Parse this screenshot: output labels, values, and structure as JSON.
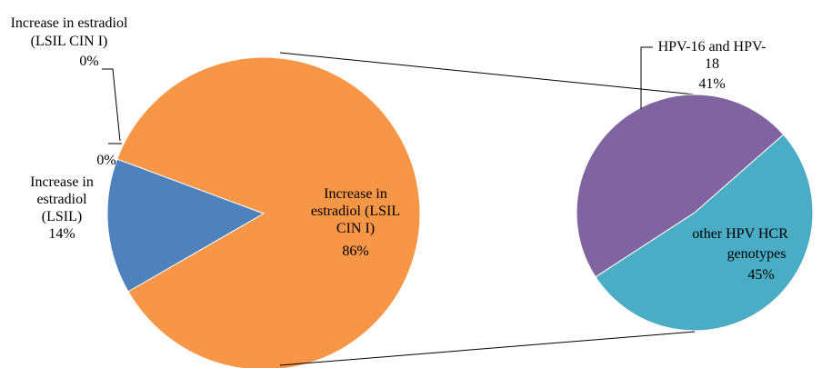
{
  "chart_data": {
    "type": "pie",
    "subtype": "pie-of-pie",
    "main_pie": {
      "slices": [
        {
          "label": "Increase in estradiol (LSIL)",
          "value": 14,
          "value_text": "14%",
          "color": "#4F81BD"
        },
        {
          "label": "Increase in estradiol (LSIL CIN I)",
          "value": 0,
          "value_text": "0%",
          "color": "#8064A2"
        },
        {
          "label": "",
          "value": 0,
          "value_text": "0%",
          "color": "#4BACC6"
        },
        {
          "label": "Increase in estradiol (LSIL CIN I)",
          "value": 86,
          "value_text": "86%",
          "color": "#F79646"
        }
      ]
    },
    "secondary_pie": {
      "slices": [
        {
          "label": "HPV-16 and HPV-18",
          "value": 41,
          "value_text": "41%",
          "color": "#8064A2"
        },
        {
          "label": "other HPV HCR genotypes",
          "value": 45,
          "value_text": "45%",
          "color": "#4BACC6"
        }
      ]
    },
    "legend": "none",
    "title": ""
  },
  "labels": {
    "lsil": [
      "Increase in",
      "estradiol",
      "(LSIL)",
      "14%"
    ],
    "zero_top": [
      "Increase in estradiol",
      "(LSIL CIN I)",
      "0%"
    ],
    "zero_mid": [
      "0%"
    ],
    "cin": [
      "Increase in",
      "estradiol (LSIL",
      "CIN I)",
      "86%"
    ],
    "hpv16": [
      "HPV-16 and HPV-",
      "18",
      "41%"
    ],
    "other": [
      "other HPV HCR",
      "genotypes",
      "45%"
    ]
  }
}
